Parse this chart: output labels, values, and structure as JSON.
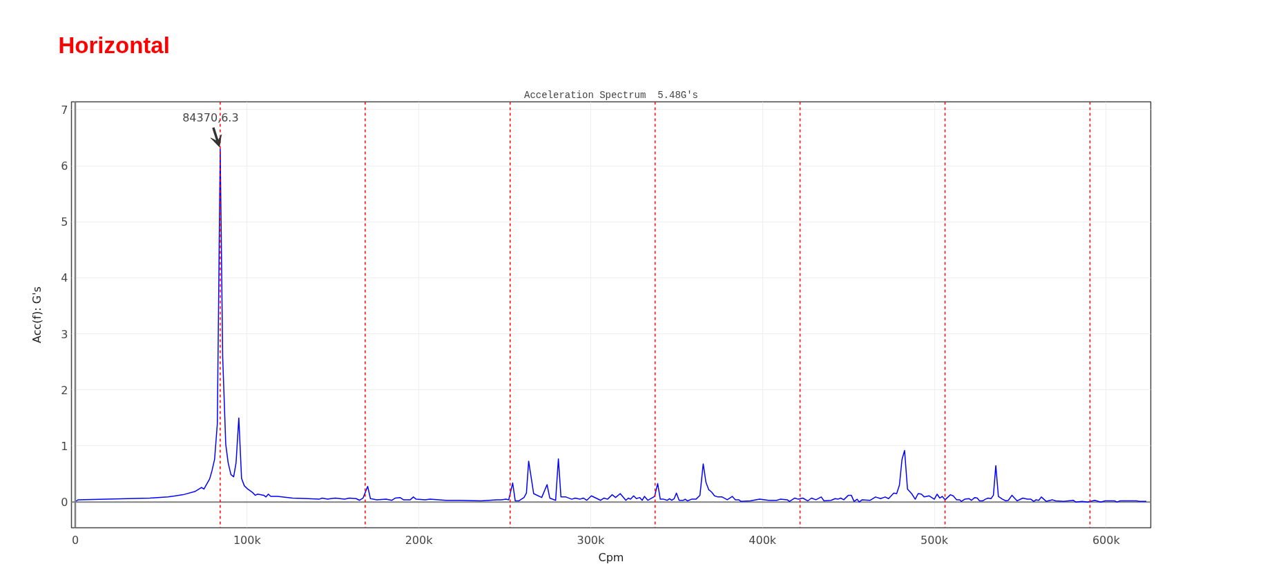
{
  "chart_data": {
    "type": "line",
    "title": "Horizontal",
    "subtitle": "Acceleration Spectrum  5.48G's",
    "xlabel": "Cpm",
    "ylabel": "Acc(f): G's",
    "x": [
      0,
      1800,
      43400,
      54000,
      62800,
      69900,
      73500,
      74900,
      78200,
      79600,
      81100,
      82700,
      84370,
      85800,
      87600,
      89000,
      90600,
      92200,
      93600,
      95200,
      96800,
      98400,
      100400,
      103200,
      104800,
      106200,
      109700,
      111000,
      112400,
      113800,
      117700,
      126500,
      135400,
      142000,
      143700,
      146900,
      148700,
      151400,
      156800,
      159500,
      163500,
      165500,
      167500,
      170200,
      171800,
      175600,
      180900,
      184300,
      186300,
      189000,
      191000,
      195000,
      196800,
      198400,
      203800,
      206400,
      215800,
      223900,
      236000,
      245400,
      248100,
      250700,
      252300,
      254600,
      256100,
      258100,
      261200,
      262600,
      263900,
      266800,
      271500,
      274600,
      276200,
      279600,
      281200,
      282700,
      285600,
      289000,
      291000,
      293700,
      295700,
      297700,
      300400,
      305800,
      307800,
      309800,
      312500,
      314500,
      317200,
      320500,
      321900,
      323200,
      325000,
      326600,
      328600,
      330000,
      331300,
      333300,
      337200,
      339000,
      340500,
      342500,
      344600,
      345900,
      347200,
      348600,
      349900,
      351500,
      354000,
      355000,
      356400,
      358700,
      361300,
      363600,
      365500,
      367100,
      368700,
      370300,
      372100,
      374100,
      376500,
      379500,
      382400,
      384200,
      386200,
      387500,
      392900,
      398300,
      403600,
      408300,
      410300,
      414400,
      415700,
      418800,
      420800,
      423500,
      426400,
      428500,
      431100,
      434200,
      435800,
      439900,
      442300,
      443900,
      445500,
      447300,
      450000,
      451700,
      453300,
      455100,
      456300,
      458000,
      462700,
      465800,
      468700,
      471400,
      473400,
      476400,
      478100,
      479700,
      481200,
      482700,
      484400,
      486800,
      488900,
      490600,
      492500,
      494200,
      496900,
      500000,
      501600,
      503200,
      504600,
      506300,
      509400,
      511000,
      513000,
      514800,
      515700,
      517700,
      520300,
      521600,
      523600,
      525000,
      526300,
      528100,
      529700,
      531300,
      533000,
      534400,
      535800,
      537300,
      539700,
      541700,
      543100,
      545200,
      548200,
      551500,
      554100,
      556200,
      557900,
      559200,
      560800,
      562300,
      565200,
      568600,
      570600,
      575300,
      580900,
      582300,
      586000,
      589400,
      593400,
      596800,
      599500,
      604800,
      606400,
      608200,
      612900,
      617600,
      619300,
      623400
    ],
    "series": [
      {
        "color": "#0000ff",
        "values": [
          0.01,
          0.04,
          0.07,
          0.09,
          0.13,
          0.19,
          0.26,
          0.23,
          0.41,
          0.56,
          0.76,
          1.4,
          6.3,
          2.6,
          1.03,
          0.7,
          0.49,
          0.45,
          0.7,
          1.5,
          0.42,
          0.29,
          0.23,
          0.17,
          0.12,
          0.14,
          0.12,
          0.09,
          0.14,
          0.1,
          0.1,
          0.07,
          0.06,
          0.05,
          0.07,
          0.05,
          0.06,
          0.07,
          0.05,
          0.07,
          0.06,
          0.03,
          0.07,
          0.28,
          0.06,
          0.04,
          0.05,
          0.03,
          0.07,
          0.08,
          0.04,
          0.04,
          0.09,
          0.05,
          0.04,
          0.05,
          0.03,
          0.03,
          0.02,
          0.04,
          0.04,
          0.05,
          0.04,
          0.34,
          0.02,
          0.02,
          0.08,
          0.16,
          0.73,
          0.15,
          0.08,
          0.31,
          0.07,
          0.03,
          0.77,
          0.09,
          0.09,
          0.05,
          0.07,
          0.05,
          0.07,
          0.03,
          0.11,
          0.03,
          0.07,
          0.05,
          0.13,
          0.08,
          0.15,
          0.03,
          0.07,
          0.05,
          0.11,
          0.06,
          0.08,
          0.03,
          0.1,
          0.03,
          0.1,
          0.33,
          0.05,
          0.05,
          0.03,
          0.06,
          0.03,
          0.06,
          0.16,
          0.03,
          0.03,
          0.05,
          0.02,
          0.05,
          0.05,
          0.12,
          0.68,
          0.35,
          0.22,
          0.18,
          0.11,
          0.09,
          0.09,
          0.04,
          0.1,
          0.04,
          0.04,
          0.01,
          0.02,
          0.05,
          0.03,
          0.03,
          0.05,
          0.04,
          0.01,
          0.07,
          0.05,
          0.07,
          0.02,
          0.07,
          0.04,
          0.09,
          0.02,
          0.03,
          0.06,
          0.05,
          0.07,
          0.04,
          0.12,
          0.12,
          0.01,
          0.05,
          0.0,
          0.04,
          0.03,
          0.09,
          0.06,
          0.09,
          0.06,
          0.16,
          0.15,
          0.3,
          0.76,
          0.92,
          0.23,
          0.15,
          0.05,
          0.15,
          0.14,
          0.09,
          0.11,
          0.05,
          0.14,
          0.07,
          0.1,
          0.04,
          0.13,
          0.11,
          0.04,
          0.04,
          0.01,
          0.05,
          0.06,
          0.03,
          0.08,
          0.07,
          0.02,
          0.02,
          0.05,
          0.07,
          0.06,
          0.12,
          0.65,
          0.1,
          0.05,
          0.02,
          0.03,
          0.12,
          0.02,
          0.07,
          0.05,
          0.05,
          0.01,
          0.04,
          0.03,
          0.09,
          0.01,
          0.04,
          0.02,
          0.01,
          0.03,
          0.0,
          0.01,
          0.0,
          0.03,
          0.0,
          0.02,
          0.02,
          0.0,
          0.02,
          0.02,
          0.02,
          0.01,
          0.01
        ]
      }
    ],
    "xlim": [
      -2200,
      626000
    ],
    "ylim": [
      -0.46,
      7.14
    ],
    "xticks": [
      0,
      {
        "value": 100000,
        "label": "100k"
      },
      {
        "value": 200000,
        "label": "200k"
      },
      {
        "value": 300000,
        "label": "300k"
      },
      {
        "value": 400000,
        "label": "400k"
      },
      {
        "value": 500000,
        "label": "500k"
      },
      {
        "value": 600000,
        "label": "600k"
      }
    ],
    "yticks": [
      0,
      1,
      2,
      3,
      4,
      5,
      6,
      7
    ],
    "grid": true,
    "line_style": "solid",
    "ref_lines": [
      {
        "axis": "x",
        "value": 0,
        "color": "#808080"
      },
      {
        "axis": "x",
        "value": 84370,
        "color": "#ff0000",
        "line_style": "dashed"
      },
      {
        "axis": "x",
        "value": 168740,
        "color": "#ff0000",
        "line_style": "dashed"
      },
      {
        "axis": "x",
        "value": 253110,
        "color": "#ff0000",
        "line_style": "dashed"
      },
      {
        "axis": "x",
        "value": 337480,
        "color": "#ff0000",
        "line_style": "dashed"
      },
      {
        "axis": "x",
        "value": 421850,
        "color": "#ff0000",
        "line_style": "dashed"
      },
      {
        "axis": "x",
        "value": 506220,
        "color": "#ff0000",
        "line_style": "dashed"
      },
      {
        "axis": "x",
        "value": 590590,
        "color": "#ff0000",
        "line_style": "dashed"
      }
    ],
    "annotations": [
      {
        "text": "84370,6.3",
        "x": 84370,
        "y": 6.3
      }
    ]
  }
}
